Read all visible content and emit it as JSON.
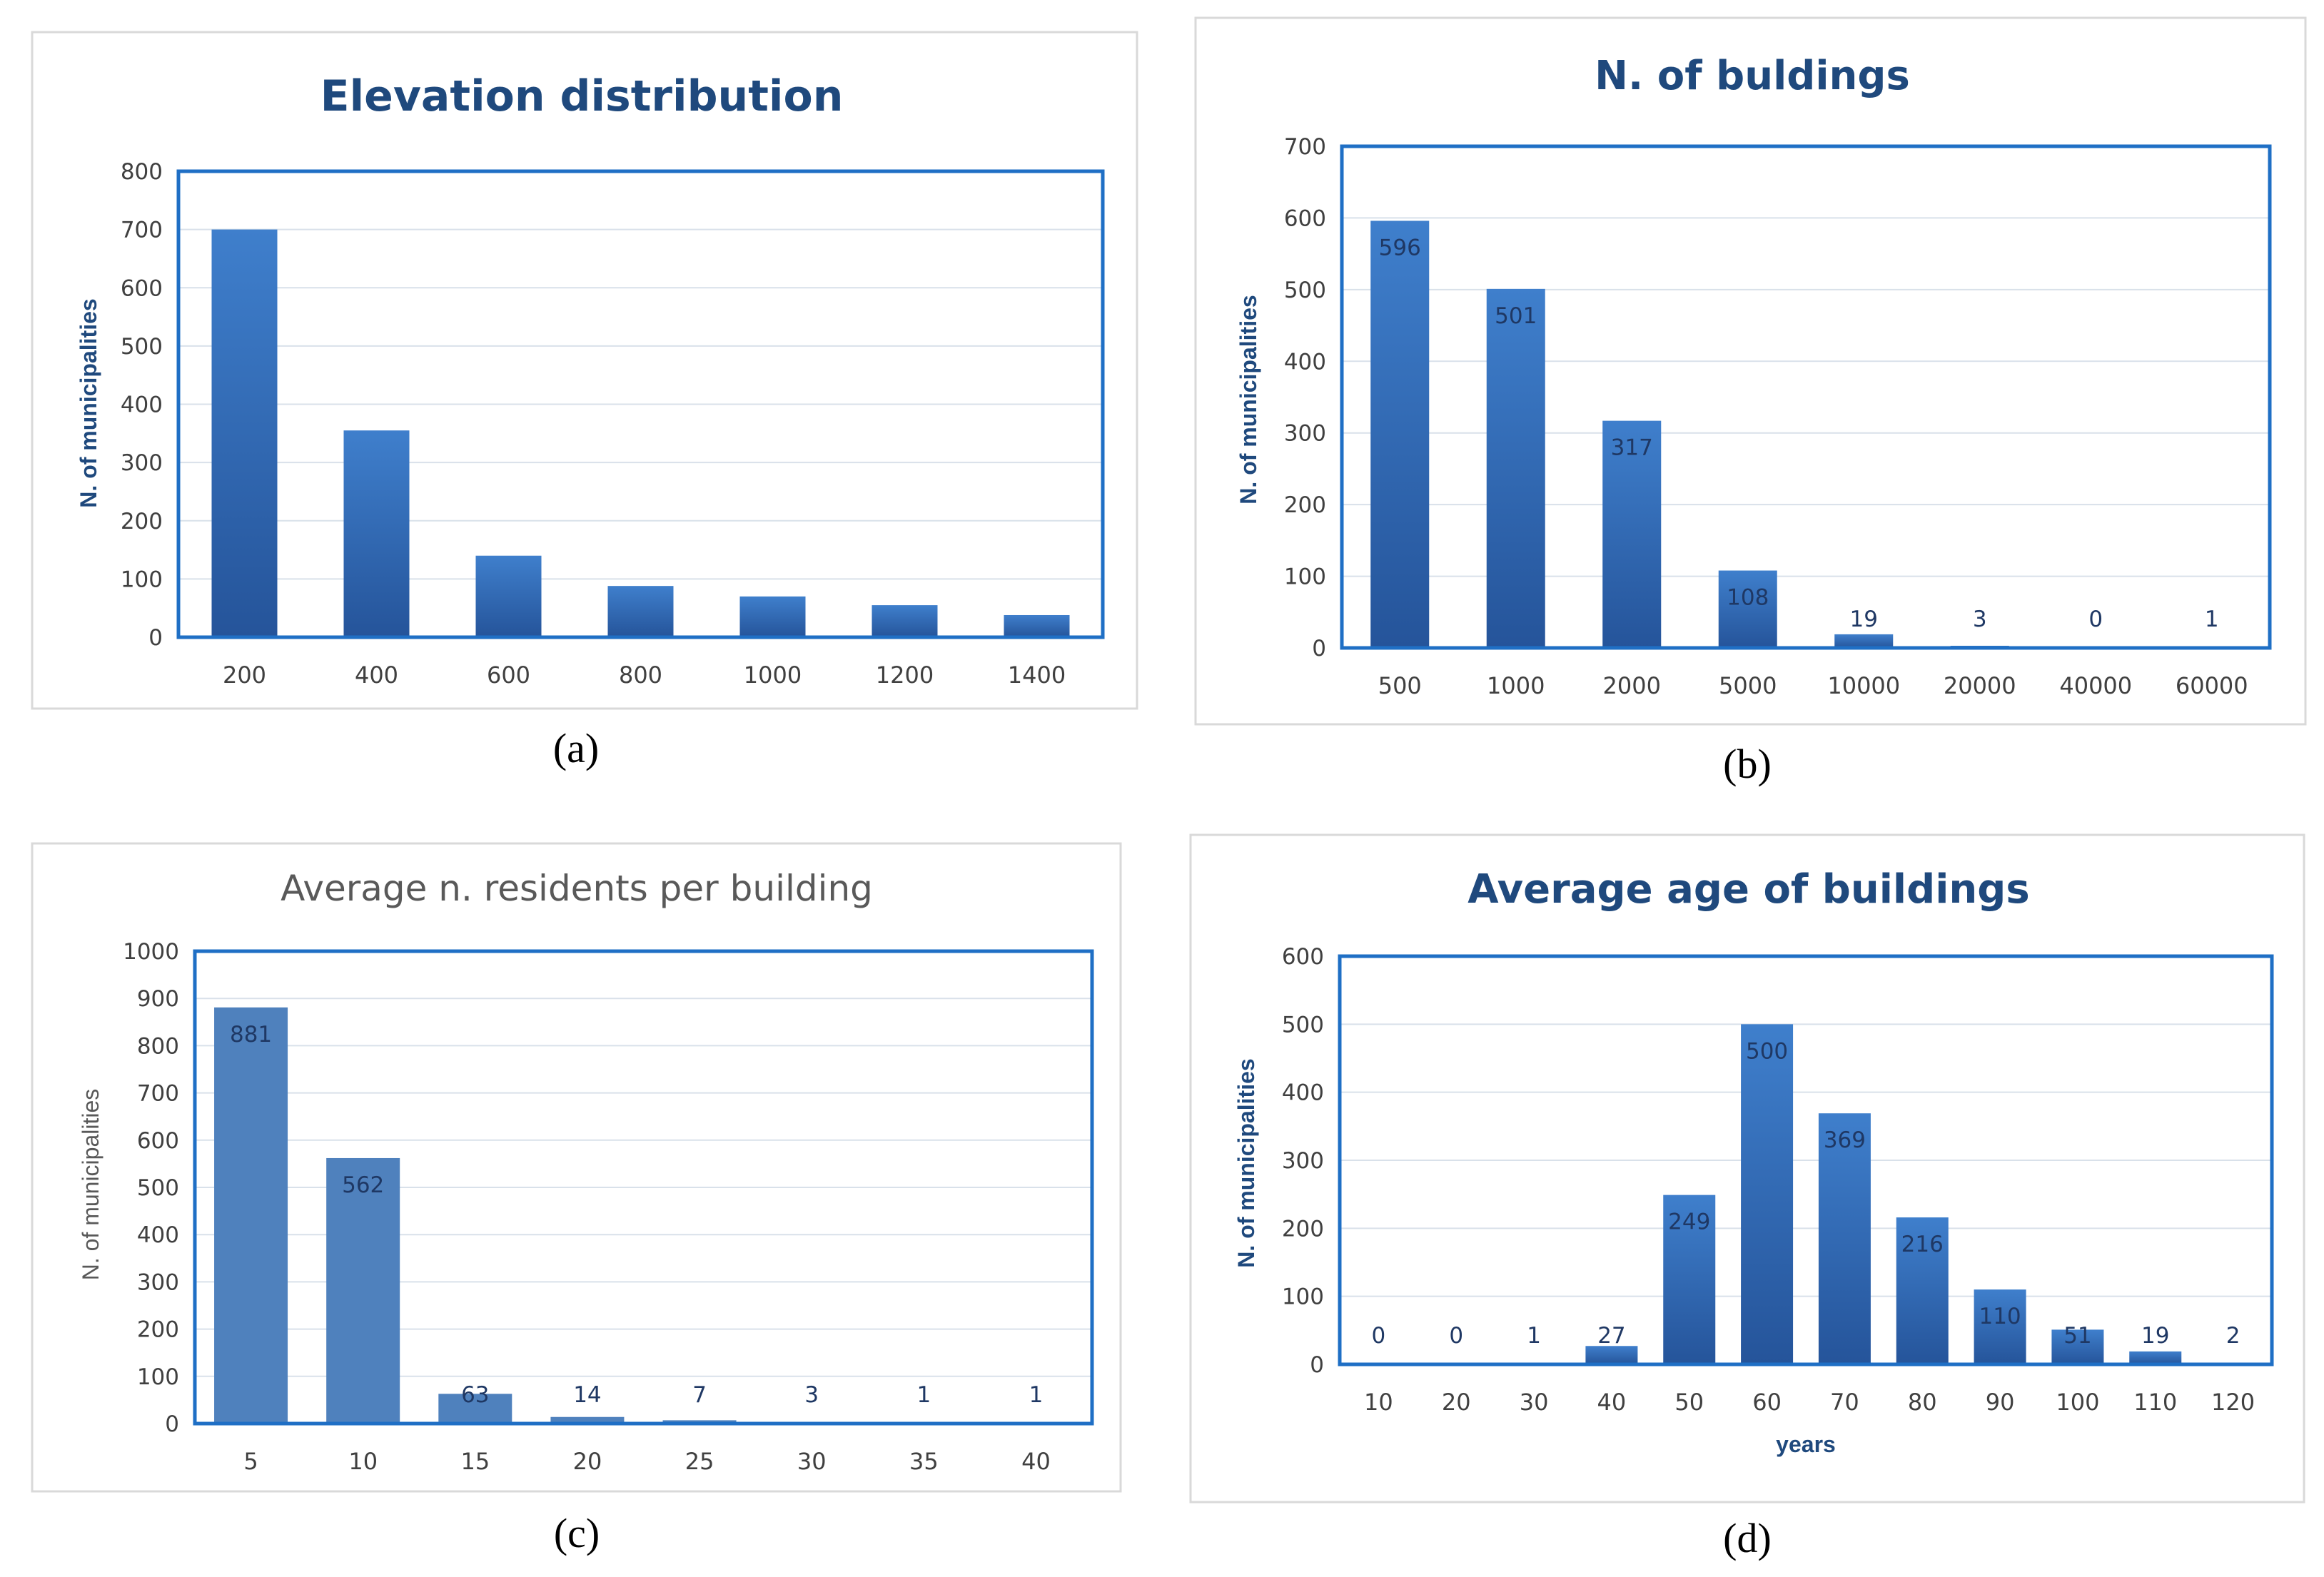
{
  "colors": {
    "frame": "#1F6FC5",
    "panel_border": "#D9D9D9",
    "grid": "#D9E1EA",
    "bar_grad_top": "#3F7FCC",
    "bar_grad_bottom": "#25549A",
    "bar_flat": "#4F81BD",
    "title_blue": "#1F497D",
    "title_grey": "#595959",
    "tick_text": "#404040",
    "value_text": "#1F3864"
  },
  "panel_labels": [
    "(a)",
    "(b)",
    "(c)",
    "(d)"
  ],
  "chart_data": [
    {
      "type": "bar",
      "title": "Elevation distribution",
      "xlabel": "",
      "ylabel": "N. of municipalities",
      "categories": [
        "200",
        "400",
        "600",
        "800",
        "1000",
        "1200",
        "1400"
      ],
      "values": [
        700,
        355,
        140,
        88,
        70,
        55,
        38
      ],
      "data_labels": false,
      "ylim": [
        0,
        800
      ],
      "yticks": [
        0,
        100,
        200,
        300,
        400,
        500,
        600,
        700,
        800
      ],
      "grid": true,
      "legend": "none"
    },
    {
      "type": "bar",
      "title": "N. of buldings",
      "xlabel": "",
      "ylabel": "N. of municipalities",
      "categories": [
        "500",
        "1000",
        "2000",
        "5000",
        "10000",
        "20000",
        "40000",
        "60000"
      ],
      "values": [
        596,
        501,
        317,
        108,
        19,
        3,
        0,
        1
      ],
      "data_labels": true,
      "ylim": [
        0,
        700
      ],
      "yticks": [
        0,
        100,
        200,
        300,
        400,
        500,
        600,
        700
      ],
      "grid": true,
      "legend": "none"
    },
    {
      "type": "bar",
      "title": "Average n. residents per building",
      "xlabel": "",
      "ylabel": "N. of municipalities",
      "categories": [
        "5",
        "10",
        "15",
        "20",
        "25",
        "30",
        "35",
        "40"
      ],
      "values": [
        881,
        562,
        63,
        14,
        7,
        3,
        1,
        1
      ],
      "data_labels": true,
      "ylim": [
        0,
        1000
      ],
      "yticks": [
        0,
        100,
        200,
        300,
        400,
        500,
        600,
        700,
        800,
        900,
        1000
      ],
      "grid": true,
      "legend": "none"
    },
    {
      "type": "bar",
      "title": "Average age of buildings",
      "xlabel": "years",
      "ylabel": "N. of municipalities",
      "categories": [
        "10",
        "20",
        "30",
        "40",
        "50",
        "60",
        "70",
        "80",
        "90",
        "100",
        "110",
        "120"
      ],
      "values": [
        0,
        0,
        1,
        27,
        249,
        500,
        369,
        216,
        110,
        51,
        19,
        2
      ],
      "data_labels": true,
      "ylim": [
        0,
        600
      ],
      "yticks": [
        0,
        100,
        200,
        300,
        400,
        500,
        600
      ],
      "grid": true,
      "legend": "none"
    }
  ]
}
